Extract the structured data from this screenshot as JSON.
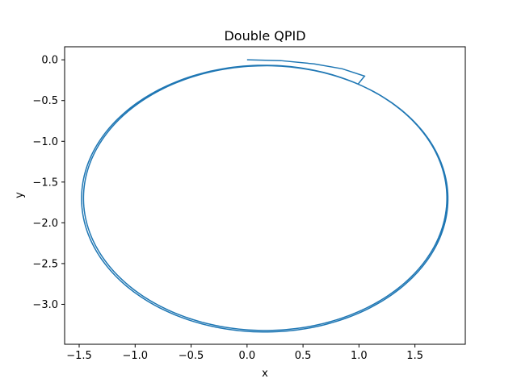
{
  "chart_data": {
    "type": "line",
    "title": "Double QPID",
    "xlabel": "x",
    "ylabel": "y",
    "xlim": [
      -1.63,
      1.95
    ],
    "ylim": [
      -3.49,
      0.16
    ],
    "xticks": [
      -1.5,
      -1.0,
      -0.5,
      0.0,
      0.5,
      1.0,
      1.5
    ],
    "xtick_labels": [
      "−1.5",
      "−1.0",
      "−0.5",
      "0.0",
      "0.5",
      "1.0",
      "1.5"
    ],
    "yticks": [
      0.0,
      -0.5,
      -1.0,
      -1.5,
      -2.0,
      -2.5,
      -3.0
    ],
    "ytick_labels": [
      "0.0",
      "−0.5",
      "−1.0",
      "−1.5",
      "−2.0",
      "−2.5",
      "−3.0"
    ],
    "grid": false,
    "series": [
      {
        "color": "#1f77b4",
        "start": [
          0.0,
          0.0
        ],
        "approach": [
          [
            0.0,
            0.0
          ],
          [
            0.3,
            -0.01
          ],
          [
            0.6,
            -0.05
          ],
          [
            0.85,
            -0.11
          ],
          [
            1.05,
            -0.2
          ]
        ],
        "orbit": {
          "center": [
            0.16,
            -1.7
          ],
          "radius_x": 1.63,
          "radius_y": 1.63,
          "loops": 3
        }
      }
    ]
  }
}
